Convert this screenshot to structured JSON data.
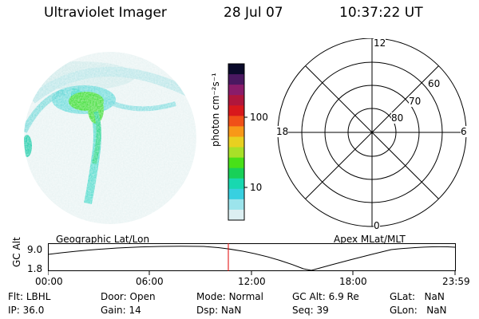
{
  "header": {
    "title": "Ultraviolet Imager",
    "date": "28 Jul 07",
    "time": "10:37:22 UT"
  },
  "colorbar": {
    "label": "photon cm⁻²s⁻¹",
    "ticks": [
      "100",
      "10"
    ],
    "colors": [
      "#0a0a2a",
      "#4a1860",
      "#8a1c6a",
      "#b0163c",
      "#d8181c",
      "#f05018",
      "#f89818",
      "#e8d020",
      "#a8e028",
      "#48e018",
      "#18d058",
      "#18d8b0",
      "#38d0e0",
      "#9ce4ec",
      "#dceff2"
    ]
  },
  "polar": {
    "mlt_labels": {
      "top": "12",
      "left": "18",
      "right": "6",
      "bottom": "0"
    },
    "lat_labels": [
      "60",
      "70",
      "80"
    ]
  },
  "altplot": {
    "left_label": "Geographic Lat/Lon",
    "right_label": "Apex MLat/MLT",
    "ylabel": "GC Alt",
    "yticks": [
      "9.0",
      "1.8"
    ],
    "xticks": [
      "00:00",
      "06:00",
      "12:00",
      "18:00",
      "23:59"
    ]
  },
  "info": {
    "row1": [
      {
        "key": "Flt:",
        "val": "LBHL"
      },
      {
        "key": "Door:",
        "val": "Open"
      },
      {
        "key": "Mode:",
        "val": "Normal"
      },
      {
        "key": "GC Alt:",
        "val": "6.9 Re"
      },
      {
        "key": "GLat:",
        "val": "NaN"
      }
    ],
    "row2": [
      {
        "key": "IP:",
        "val": "36.0"
      },
      {
        "key": "Gain:",
        "val": "14"
      },
      {
        "key": "Dsp:",
        "val": "NaN"
      },
      {
        "key": "Seq:",
        "val": "39"
      },
      {
        "key": "GLon:",
        "val": "NaN"
      }
    ]
  }
}
